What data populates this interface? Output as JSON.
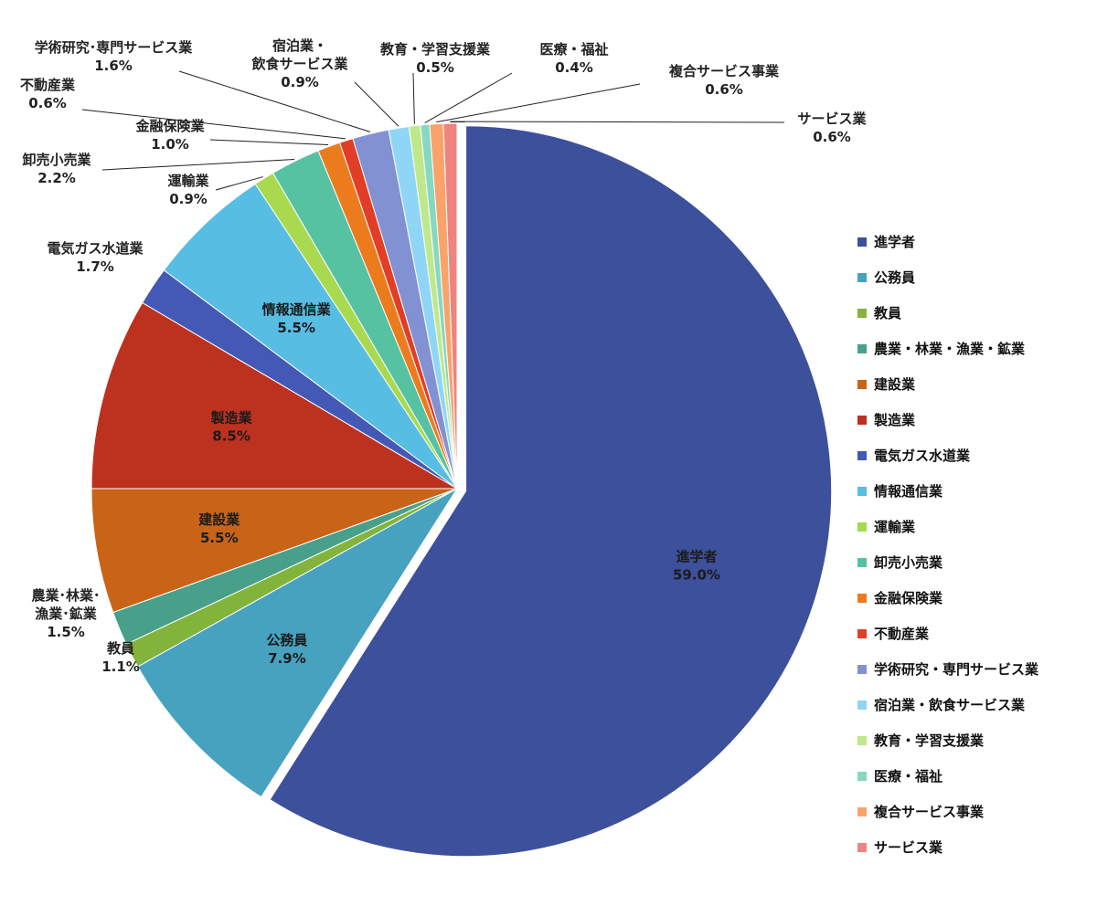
{
  "chart_data": {
    "type": "pie",
    "title": "",
    "legend_position": "right",
    "slices": [
      {
        "name": "進学者",
        "label_lines": [
          "進学者",
          "59.0%"
        ],
        "value": 59.0,
        "color": "#3d509c"
      },
      {
        "name": "公務員",
        "label_lines": [
          "公務員",
          "7.9%"
        ],
        "value": 7.9,
        "color": "#47a2bf"
      },
      {
        "name": "教員",
        "label_lines": [
          "教員",
          "1.1%"
        ],
        "value": 1.1,
        "color": "#82b43c"
      },
      {
        "name": "農業・林業・漁業・鉱業",
        "label_lines": [
          "農業･林業･",
          "漁業･鉱業",
          "1.5%"
        ],
        "value": 1.5,
        "color": "#48a08a"
      },
      {
        "name": "建設業",
        "label_lines": [
          "建設業",
          "5.5%"
        ],
        "value": 5.5,
        "color": "#c96318"
      },
      {
        "name": "製造業",
        "label_lines": [
          "製造業",
          "8.5%"
        ],
        "value": 8.5,
        "color": "#bd311f"
      },
      {
        "name": "電気ガス水道業",
        "label_lines": [
          "電気ガス水道業",
          "1.7%"
        ],
        "value": 1.7,
        "color": "#4459b5"
      },
      {
        "name": "情報通信業",
        "label_lines": [
          "情報通信業",
          "5.5%"
        ],
        "value": 5.5,
        "color": "#57bde3"
      },
      {
        "name": "運輸業",
        "label_lines": [
          "運輸業",
          "0.9%"
        ],
        "value": 0.9,
        "color": "#a8d94e"
      },
      {
        "name": "卸売小売業",
        "label_lines": [
          "卸売小売業",
          "2.2%"
        ],
        "value": 2.2,
        "color": "#56c2a2"
      },
      {
        "name": "金融保険業",
        "label_lines": [
          "金融保険業",
          "1.0%"
        ],
        "value": 1.0,
        "color": "#ec7b1e"
      },
      {
        "name": "不動産業",
        "label_lines": [
          "不動産業",
          "0.6%"
        ],
        "value": 0.6,
        "color": "#e23d26"
      },
      {
        "name": "学術研究・専門サービス業",
        "label_lines": [
          "学術研究･専門サービス業",
          "1.6%"
        ],
        "value": 1.6,
        "color": "#8291d1"
      },
      {
        "name": "宿泊業・飲食サービス業",
        "label_lines": [
          "宿泊業・",
          "飲食サービス業",
          "0.9%"
        ],
        "value": 0.9,
        "color": "#8fd6f6"
      },
      {
        "name": "教育・学習支援業",
        "label_lines": [
          "教育・学習支援業",
          "0.5%"
        ],
        "value": 0.5,
        "color": "#bfe88c"
      },
      {
        "name": "医療・福祉",
        "label_lines": [
          "医療・福祉",
          "0.4%"
        ],
        "value": 0.4,
        "color": "#86d8c0"
      },
      {
        "name": "複合サービス事業",
        "label_lines": [
          "複合サービス事業",
          "0.6%"
        ],
        "value": 0.6,
        "color": "#f9a36b"
      },
      {
        "name": "サービス業",
        "label_lines": [
          "サービス業",
          "0.6%"
        ],
        "value": 0.6,
        "color": "#ee8480"
      }
    ],
    "legend": [
      "進学者",
      "公務員",
      "教員",
      "農業・林業・漁業・鉱業",
      "建設業",
      "製造業",
      "電気ガス水道業",
      "情報通信業",
      "運輸業",
      "卸売小売業",
      "金融保険業",
      "不動産業",
      "学術研究・専門サービス業",
      "宿泊業・飲食サービス業",
      "教育・学習支援業",
      "医療・福祉",
      "複合サービス事業",
      "サービス業"
    ]
  }
}
